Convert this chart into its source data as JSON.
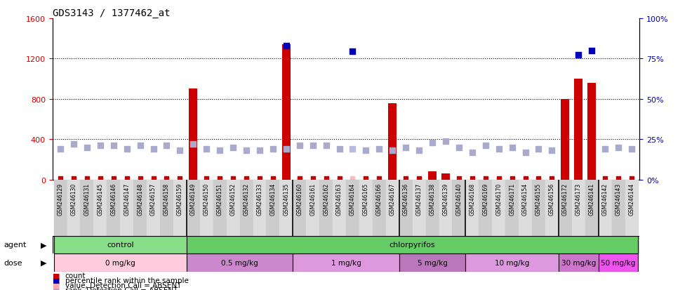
{
  "title": "GDS3143 / 1377462_at",
  "samples": [
    "GSM246129",
    "GSM246130",
    "GSM246131",
    "GSM246145",
    "GSM246146",
    "GSM246147",
    "GSM246148",
    "GSM246157",
    "GSM246158",
    "GSM246159",
    "GSM246149",
    "GSM246150",
    "GSM246151",
    "GSM246152",
    "GSM246132",
    "GSM246133",
    "GSM246134",
    "GSM246135",
    "GSM246160",
    "GSM246161",
    "GSM246162",
    "GSM246163",
    "GSM246164",
    "GSM246165",
    "GSM246166",
    "GSM246167",
    "GSM246136",
    "GSM246137",
    "GSM246138",
    "GSM246139",
    "GSM246140",
    "GSM246168",
    "GSM246169",
    "GSM246170",
    "GSM246171",
    "GSM246154",
    "GSM246155",
    "GSM246156",
    "GSM246172",
    "GSM246173",
    "GSM246141",
    "GSM246142",
    "GSM246143",
    "GSM246144"
  ],
  "red_bar_values": [
    0,
    0,
    0,
    0,
    0,
    0,
    0,
    0,
    0,
    0,
    900,
    0,
    0,
    0,
    0,
    0,
    0,
    1340,
    0,
    0,
    0,
    0,
    0,
    0,
    0,
    760,
    0,
    0,
    80,
    60,
    0,
    0,
    0,
    0,
    0,
    0,
    0,
    0,
    800,
    1000,
    960,
    0,
    0,
    0
  ],
  "blue_square_values": [
    null,
    null,
    null,
    null,
    null,
    null,
    null,
    null,
    null,
    null,
    null,
    null,
    null,
    null,
    null,
    null,
    null,
    1330,
    null,
    null,
    null,
    null,
    1270,
    null,
    null,
    null,
    null,
    null,
    null,
    null,
    null,
    null,
    null,
    null,
    null,
    null,
    null,
    null,
    null,
    1240,
    1280,
    null,
    null,
    null
  ],
  "lavender_rank_pct": [
    19,
    22,
    20,
    21,
    21,
    19,
    21,
    19,
    21,
    18,
    22,
    19,
    18,
    20,
    18,
    18,
    19,
    19,
    21,
    21,
    21,
    19,
    null,
    18,
    19,
    18,
    20,
    18,
    23,
    24,
    20,
    17,
    21,
    19,
    20,
    17,
    19,
    18,
    null,
    null,
    null,
    19,
    20,
    19
  ],
  "pink_count_values": [
    8,
    8,
    8,
    8,
    8,
    8,
    8,
    8,
    8,
    8,
    8,
    8,
    8,
    8,
    8,
    8,
    8,
    8,
    8,
    8,
    8,
    8,
    8,
    8,
    8,
    8,
    8,
    8,
    8,
    8,
    8,
    8,
    8,
    8,
    8,
    8,
    8,
    8,
    8,
    8,
    8,
    8,
    8,
    8
  ],
  "is_absent": [
    false,
    false,
    false,
    false,
    false,
    false,
    false,
    false,
    false,
    false,
    false,
    false,
    false,
    false,
    false,
    false,
    false,
    false,
    false,
    false,
    false,
    false,
    true,
    false,
    false,
    false,
    false,
    false,
    false,
    false,
    false,
    false,
    false,
    false,
    false,
    false,
    false,
    false,
    false,
    false,
    false,
    false,
    false,
    false
  ],
  "absent_rank_pct": [
    null,
    null,
    null,
    null,
    null,
    null,
    null,
    null,
    null,
    null,
    null,
    null,
    null,
    null,
    null,
    null,
    null,
    null,
    null,
    null,
    null,
    null,
    19,
    null,
    null,
    null,
    null,
    null,
    null,
    null,
    null,
    null,
    null,
    null,
    null,
    null,
    null,
    null,
    null,
    null,
    null,
    null,
    null,
    null
  ],
  "absent_pink_values": [
    null,
    null,
    null,
    null,
    null,
    null,
    null,
    null,
    null,
    null,
    null,
    null,
    null,
    null,
    null,
    null,
    null,
    null,
    null,
    null,
    null,
    null,
    8,
    null,
    null,
    null,
    null,
    null,
    null,
    null,
    null,
    null,
    null,
    null,
    null,
    null,
    null,
    null,
    null,
    null,
    null,
    null,
    null,
    null
  ],
  "agent_groups": [
    {
      "label": "control",
      "start": 0,
      "end": 9,
      "color": "#88DD88"
    },
    {
      "label": "chlorpyrifos",
      "start": 10,
      "end": 43,
      "color": "#66CC66"
    }
  ],
  "dose_groups": [
    {
      "label": "0 mg/kg",
      "start": 0,
      "end": 9,
      "color": "#FFCCCC"
    },
    {
      "label": "0.5 mg/kg",
      "start": 10,
      "end": 17,
      "color": "#DD99DD"
    },
    {
      "label": "1 mg/kg",
      "start": 18,
      "end": 25,
      "color": "#EEB8EE"
    },
    {
      "label": "5 mg/kg",
      "start": 26,
      "end": 30,
      "color": "#CC88CC"
    },
    {
      "label": "10 mg/kg",
      "start": 31,
      "end": 37,
      "color": "#EEB8EE"
    },
    {
      "label": "30 mg/kg",
      "start": 38,
      "end": 40,
      "color": "#DD88DD"
    },
    {
      "label": "50 mg/kg",
      "start": 41,
      "end": 43,
      "color": "#EE66EE"
    }
  ],
  "ylim_left": [
    0,
    1600
  ],
  "ylim_right": [
    0,
    100
  ],
  "yticks_left": [
    0,
    400,
    800,
    1200,
    1600
  ],
  "yticks_right": [
    0,
    25,
    50,
    75,
    100
  ],
  "bar_color": "#CC0000",
  "blue_marker_color": "#0000BB",
  "light_pink_color": "#FFAAAA",
  "light_pink_absent_color": "#FFBBBB",
  "lavender_color": "#AAAACC",
  "lavender_absent_color": "#BBBBDD",
  "left_axis_color": "#CC0000",
  "right_axis_color": "#0000BB"
}
